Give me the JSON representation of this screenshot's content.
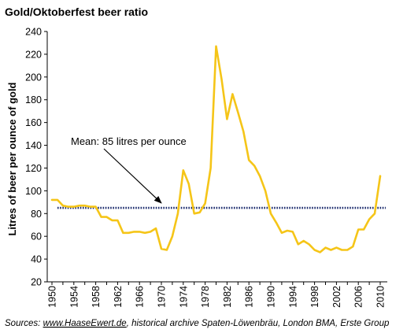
{
  "chart_data": {
    "type": "line",
    "title": "Gold/Oktoberfest beer ratio",
    "ylabel": "Litres of beer per ounce of gold",
    "xlabel": "",
    "xlim": [
      1950,
      2010
    ],
    "ylim": [
      20,
      240
    ],
    "y_ticks": [
      20,
      40,
      60,
      80,
      100,
      120,
      140,
      160,
      180,
      200,
      220,
      240
    ],
    "x_ticks": [
      1950,
      1954,
      1958,
      1962,
      1966,
      1970,
      1974,
      1978,
      1982,
      1986,
      1990,
      1994,
      1998,
      2002,
      2006,
      2010
    ],
    "grid": false,
    "legend": "none",
    "series": [
      {
        "color": "#F5C518",
        "x": [
          1950,
          1951,
          1952,
          1953,
          1954,
          1955,
          1956,
          1957,
          1958,
          1959,
          1960,
          1961,
          1962,
          1963,
          1964,
          1965,
          1966,
          1967,
          1968,
          1969,
          1970,
          1971,
          1972,
          1973,
          1974,
          1975,
          1976,
          1977,
          1978,
          1979,
          1980,
          1981,
          1982,
          1983,
          1984,
          1985,
          1986,
          1987,
          1988,
          1989,
          1990,
          1991,
          1992,
          1993,
          1994,
          1995,
          1996,
          1997,
          1998,
          1999,
          2000,
          2001,
          2002,
          2003,
          2004,
          2005,
          2006,
          2007,
          2008,
          2009,
          2010
        ],
        "values": [
          92,
          92,
          87,
          86,
          86,
          87,
          87,
          86,
          86,
          77,
          77,
          74,
          74,
          63,
          63,
          64,
          64,
          63,
          64,
          67,
          49,
          48,
          60,
          80,
          118,
          106,
          80,
          81,
          89,
          120,
          227,
          198,
          163,
          185,
          169,
          152,
          127,
          122,
          113,
          100,
          80,
          72,
          63,
          65,
          64,
          53,
          56,
          53,
          48,
          46,
          50,
          48,
          50,
          48,
          48,
          51,
          66,
          66,
          75,
          80,
          113
        ]
      },
      {
        "name": "Mean",
        "style": "dotted",
        "color": "#1A2A6C",
        "x": [
          1951,
          2011
        ],
        "values": [
          85,
          85
        ]
      }
    ],
    "annotations": [
      {
        "text": "Mean: 85 litres per ounce",
        "arrow_to": [
          1970,
          85
        ]
      }
    ]
  },
  "source": {
    "prefix": "Sources: ",
    "link": "www.HaaseEwert.de",
    "suffix": ", historical archive Spaten-Löwenbräu, London BMA, Erste Group"
  }
}
